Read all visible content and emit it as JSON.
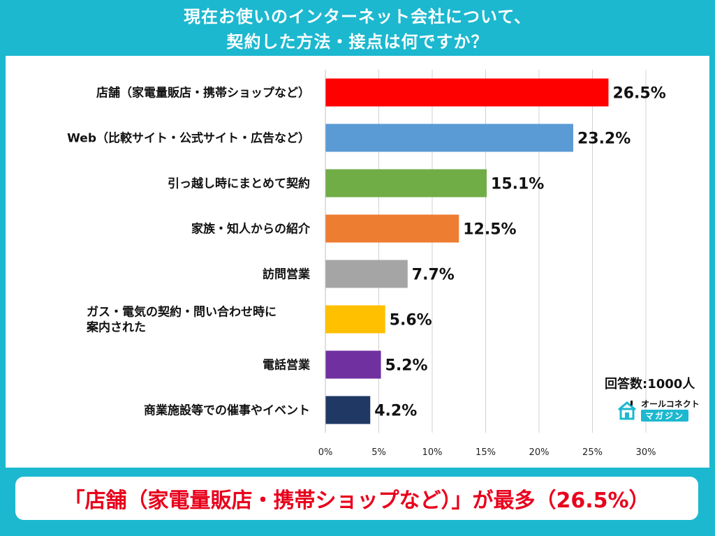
{
  "title": {
    "line1": "現在お使いのインターネット会社について、",
    "line2": "契約した方法・接点は何ですか？"
  },
  "note": "回答数:1000人",
  "logo": {
    "top_text": "オールコネクト",
    "bottom_text": "マガジン",
    "icon": "house-logo-icon"
  },
  "banner": "「店舗（家電量販店・携帯ショップなど）」が最多（26.5%）",
  "colors": {
    "background": "#1cb8cf",
    "banner_text": "#e8001c"
  },
  "chart_data": {
    "type": "bar",
    "orientation": "horizontal",
    "categories": [
      "店舗（家電量販店・携帯ショップなど）",
      "Web（比較サイト・公式サイト・広告など）",
      "引っ越し時にまとめて契約",
      "家族・知人からの紹介",
      "訪問営業",
      "ガス・電気の契約・問い合わせ時に案内された",
      "電話営業",
      "商業施設等での催事やイベント"
    ],
    "category_lines": [
      [
        "店舗（家電量販店・携帯ショップなど）"
      ],
      [
        "Web（比較サイト・公式サイト・広告など）"
      ],
      [
        "引っ越し時にまとめて契約"
      ],
      [
        "家族・知人からの紹介"
      ],
      [
        "訪問営業"
      ],
      [
        "ガス・電気の契約・問い合わせ時に",
        "案内された"
      ],
      [
        "電話営業"
      ],
      [
        "商業施設等での催事やイベント"
      ]
    ],
    "values": [
      26.5,
      23.2,
      15.1,
      12.5,
      7.7,
      5.6,
      5.2,
      4.2
    ],
    "value_labels": [
      "26.5%",
      "23.2%",
      "15.1%",
      "12.5%",
      "7.7%",
      "5.6%",
      "5.2%",
      "4.2%"
    ],
    "bar_colors": [
      "#ff0000",
      "#5b9bd5",
      "#70ad47",
      "#ed7d31",
      "#a5a5a5",
      "#ffc000",
      "#7030a0",
      "#203864"
    ],
    "xlim": [
      0,
      30
    ],
    "xticks": [
      0,
      5,
      10,
      15,
      20,
      25,
      30
    ],
    "xtick_labels": [
      "0%",
      "5%",
      "10%",
      "15%",
      "20%",
      "25%",
      "30%"
    ],
    "grid": true
  }
}
